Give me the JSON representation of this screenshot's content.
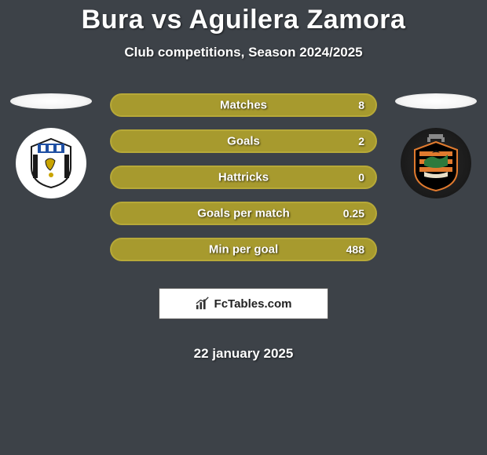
{
  "title": "Bura vs Aguilera Zamora",
  "subtitle": "Club competitions, Season 2024/2025",
  "date": "22 january 2025",
  "watermark": "FcTables.com",
  "colors": {
    "bar_fill": "#a79a2e",
    "bar_border": "#b7a938"
  },
  "stats": [
    {
      "label": "Matches",
      "value": "8"
    },
    {
      "label": "Goals",
      "value": "2"
    },
    {
      "label": "Hattricks",
      "value": "0"
    },
    {
      "label": "Goals per match",
      "value": "0.25"
    },
    {
      "label": "Min per goal",
      "value": "488"
    }
  ],
  "crest_left": {
    "bg": "#ffffff",
    "stripes": "#1a1a1a",
    "accent": "#c9a400",
    "blue": "#1e4fa3"
  },
  "crest_right": {
    "shield": "#000000",
    "orange": "#e07a2e",
    "green": "#2d7a3d",
    "cream": "#e8dfc8"
  }
}
